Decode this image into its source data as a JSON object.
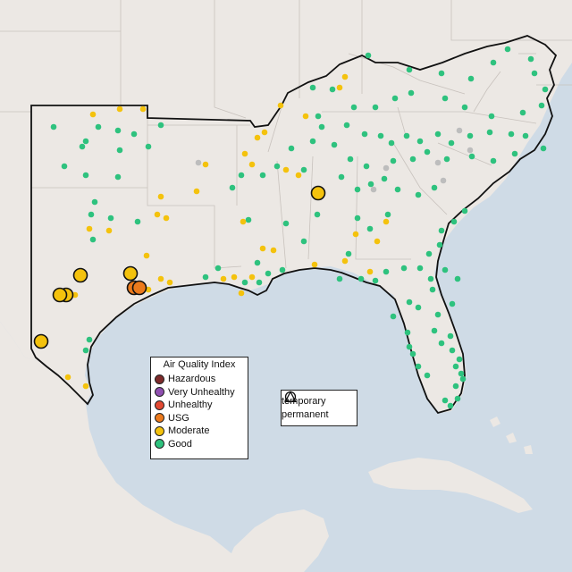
{
  "legend": {
    "title": "Air Quality Index",
    "categories": [
      {
        "label": "Hazardous",
        "color": "#7e2b2b"
      },
      {
        "label": "Very Unhealthy",
        "color": "#8f4fb0"
      },
      {
        "label": "Unhealthy",
        "color": "#e34a33"
      },
      {
        "label": "USG",
        "color": "#ec7a1c"
      },
      {
        "label": "Moderate",
        "color": "#f4c20d"
      },
      {
        "label": "Good",
        "color": "#2ec27e"
      }
    ]
  },
  "shape_legend": {
    "items": [
      {
        "label": "temporary",
        "shape": "circle-icon"
      },
      {
        "label": "permanent",
        "shape": "triangle-icon"
      }
    ]
  },
  "colors": {
    "water": "#cfdbe6",
    "land": "#ece8e4",
    "no_data": "#bdbdbd"
  }
}
